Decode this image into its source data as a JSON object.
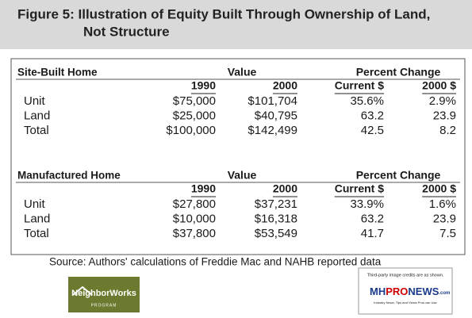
{
  "title_lines": [
    "Figure 5: Illustration of Equity Built Through Ownership of Land,",
    "Not Structure"
  ],
  "sections": [
    {
      "name": "Site-Built Home",
      "value_header": "Value",
      "percent_header": "Percent Change",
      "columns": [
        "1990",
        "2000",
        "Current $",
        "2000 $"
      ],
      "rows": [
        [
          "Unit",
          "$75,000",
          "$101,704",
          "35.6%",
          "2.9%"
        ],
        [
          "Land",
          "$25,000",
          "$40,795",
          "63.2",
          "23.9"
        ],
        [
          "Total",
          "$100,000",
          "$142,499",
          "42.5",
          "8.2"
        ]
      ]
    },
    {
      "name": "Manufactured Home",
      "value_header": "Value",
      "percent_header": "Percent Change",
      "columns": [
        "1990",
        "2000",
        "Current $",
        "2000 $"
      ],
      "rows": [
        [
          "Unit",
          "$27,800",
          "$37,231",
          "33.9%",
          "1.6%"
        ],
        [
          "Land",
          "$10,000",
          "$16,318",
          "63.2",
          "23.9"
        ],
        [
          "Total",
          "$37,800",
          "$53,549",
          "41.7",
          "7.5"
        ]
      ]
    }
  ],
  "source": "Source: Authors' calculations of Freddie Mac and NAHB reported data",
  "neighborworks": {
    "name": "NeighborWorks",
    "program": "PROGRAM"
  },
  "mhpronews": {
    "credit": "Third-party image credits are as shown.",
    "mh": "MH",
    "pro": "PRO",
    "news": "NEWS",
    "com": ".com",
    "tagline": "Industry News, Tips and Views Pros can Use"
  }
}
